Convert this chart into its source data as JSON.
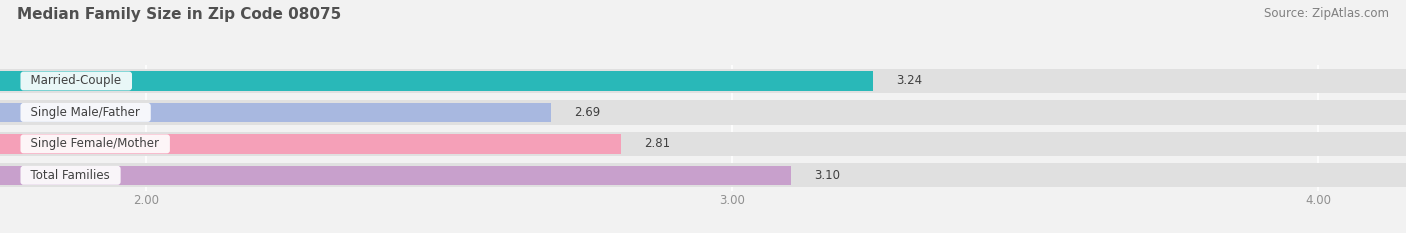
{
  "title": "Median Family Size in Zip Code 08075",
  "source": "Source: ZipAtlas.com",
  "categories": [
    "Married-Couple",
    "Single Male/Father",
    "Single Female/Mother",
    "Total Families"
  ],
  "values": [
    3.24,
    2.69,
    2.81,
    3.1
  ],
  "bar_colors": [
    "#29b8b8",
    "#a8b8e0",
    "#f5a0b8",
    "#c8a0cc"
  ],
  "bar_bg_color": "#e0e0e0",
  "xmin": 1.75,
  "xmax": 4.15,
  "xticks": [
    2.0,
    3.0,
    4.0
  ],
  "xtick_labels": [
    "2.00",
    "3.00",
    "4.00"
  ],
  "bar_height": 0.62,
  "title_fontsize": 11,
  "source_fontsize": 8.5,
  "label_fontsize": 8.5,
  "value_fontsize": 8.5,
  "tick_fontsize": 8.5,
  "background_color": "#f2f2f2",
  "title_color": "#505050",
  "source_color": "#808080",
  "label_color": "#404040",
  "value_color": "#404040",
  "tick_color": "#909090",
  "grid_color": "#ffffff"
}
